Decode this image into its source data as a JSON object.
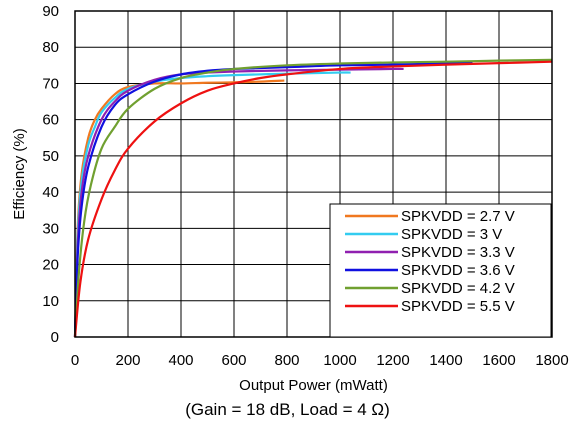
{
  "chart_data": {
    "type": "line",
    "xlabel": "Output Power (mWatt)",
    "ylabel": "Efficiency (%)",
    "xlim": [
      0,
      1800
    ],
    "ylim": [
      0,
      90
    ],
    "xticks": [
      0,
      200,
      400,
      600,
      800,
      1000,
      1200,
      1400,
      1600,
      1800
    ],
    "yticks": [
      0,
      10,
      20,
      30,
      40,
      50,
      60,
      70,
      80,
      90
    ],
    "grid": true,
    "legend_position": "bottom-right",
    "caption": "(Gain = 18 dB, Load = 4 Ω)",
    "series": [
      {
        "name": "SPKVDD = 2.7 V",
        "color": "#f07820",
        "x": [
          0,
          10,
          25,
          50,
          75,
          100,
          150,
          200,
          300,
          400,
          500,
          600,
          700,
          790
        ],
        "y": [
          0,
          30,
          45,
          55,
          60,
          63,
          67,
          69,
          70,
          70,
          70.2,
          70.3,
          70.5,
          70.8
        ]
      },
      {
        "name": "SPKVDD = 3 V",
        "color": "#33ccf0",
        "x": [
          0,
          10,
          25,
          50,
          75,
          100,
          150,
          200,
          300,
          400,
          500,
          600,
          800,
          1000,
          1040
        ],
        "y": [
          0,
          28,
          43,
          53,
          58,
          62,
          66,
          68.5,
          70.5,
          71.5,
          72,
          72.3,
          72.7,
          73,
          73
        ]
      },
      {
        "name": "SPKVDD = 3.3 V",
        "color": "#9020b0",
        "x": [
          0,
          10,
          25,
          50,
          100,
          150,
          200,
          300,
          400,
          500,
          600,
          800,
          1000,
          1200,
          1240
        ],
        "y": [
          0,
          25,
          40,
          50,
          60,
          65,
          68,
          71,
          72.5,
          73,
          73.3,
          73.6,
          73.8,
          74,
          74
        ]
      },
      {
        "name": "SPKVDD = 3.6 V",
        "color": "#1010e0",
        "x": [
          0,
          10,
          25,
          50,
          100,
          150,
          200,
          300,
          400,
          500,
          600,
          800,
          1000,
          1200,
          1400,
          1500
        ],
        "y": [
          0,
          22,
          36,
          47,
          58,
          64,
          67,
          70.5,
          72.5,
          73.5,
          74,
          74.5,
          75,
          75.2,
          75.5,
          75.7
        ]
      },
      {
        "name": "SPKVDD = 4.2 V",
        "color": "#70a030",
        "x": [
          0,
          15,
          35,
          60,
          100,
          150,
          200,
          300,
          400,
          500,
          600,
          800,
          1000,
          1200,
          1400,
          1600,
          1800
        ],
        "y": [
          0,
          18,
          32,
          42,
          52,
          58,
          63,
          68.5,
          71.5,
          73,
          74,
          75,
          75.5,
          75.8,
          76,
          76.3,
          76.5
        ]
      },
      {
        "name": "SPKVDD = 5.5 V",
        "color": "#ee1111",
        "x": [
          0,
          20,
          50,
          100,
          150,
          200,
          300,
          400,
          500,
          600,
          700,
          800,
          1000,
          1200,
          1400,
          1600,
          1800
        ],
        "y": [
          0,
          15,
          27,
          38,
          46,
          52,
          59.5,
          64.5,
          68,
          70,
          71.5,
          72.5,
          74,
          74.7,
          75.2,
          75.6,
          76
        ]
      }
    ]
  }
}
